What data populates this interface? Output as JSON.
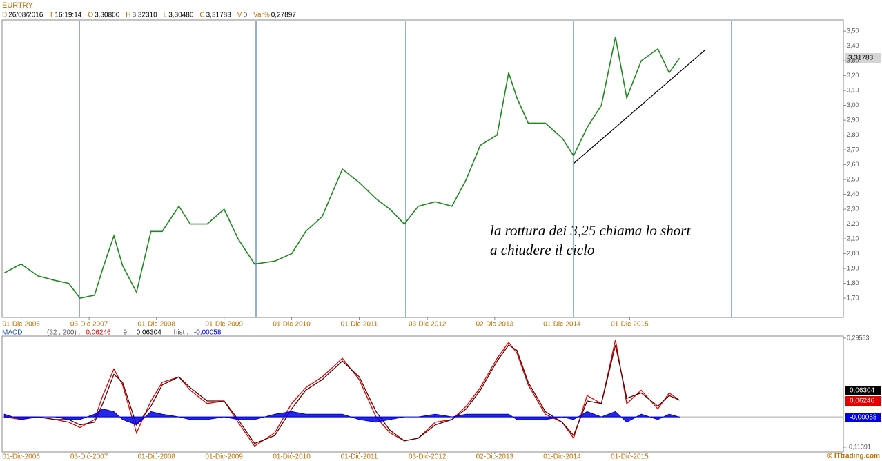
{
  "header": {
    "title": "EURTRY",
    "quote": [
      {
        "key": "D",
        "value": "26/08/2016"
      },
      {
        "key": "T",
        "value": "16:19:14"
      },
      {
        "key": "O",
        "value": "3,30800"
      },
      {
        "key": "H",
        "value": "3,32310"
      },
      {
        "key": "L",
        "value": "3,30480"
      },
      {
        "key": "C",
        "value": "3,31783"
      },
      {
        "key": "V",
        "value": "0"
      },
      {
        "key": "Var%",
        "value": "0,27897"
      }
    ],
    "last_price_label": "3,31783",
    "annotation": [
      "la rottura dei 3,25 chiama lo short",
      "a chiudere il ciclo"
    ],
    "credit": "© ITtrading.com"
  },
  "chart_data": [
    {
      "type": "line",
      "x": [
        "2006-09-01",
        "2006-12-01",
        "2007-03-01",
        "2007-06-01",
        "2007-08-15",
        "2007-10-15",
        "2008-01-01",
        "2008-02-15",
        "2008-04-15",
        "2008-06-01",
        "2008-08-15",
        "2008-11-01",
        "2009-01-01",
        "2009-04-01",
        "2009-06-01",
        "2009-09-01",
        "2009-12-01",
        "2010-02-15",
        "2010-05-15",
        "2010-09-01",
        "2010-12-01",
        "2011-02-15",
        "2011-05-15",
        "2011-09-01",
        "2011-12-01",
        "2012-03-01",
        "2012-05-15",
        "2012-08-01",
        "2012-10-15",
        "2013-01-15",
        "2013-04-15",
        "2013-07-01",
        "2013-09-15",
        "2013-12-15",
        "2014-02-15",
        "2014-04-01",
        "2014-06-01",
        "2014-09-01",
        "2014-12-01",
        "2015-02-01",
        "2015-04-15",
        "2015-07-01",
        "2015-09-15",
        "2015-11-15",
        "2016-02-01",
        "2016-05-01",
        "2016-07-01",
        "2016-08-26"
      ],
      "series": [
        {
          "name": "EURTRY",
          "color": "#1c8a1c",
          "values": [
            1.87,
            1.93,
            1.85,
            1.82,
            1.8,
            1.7,
            1.72,
            1.9,
            2.12,
            1.92,
            1.74,
            2.15,
            2.15,
            2.32,
            2.2,
            2.2,
            2.3,
            2.1,
            1.93,
            1.95,
            2.0,
            2.15,
            2.25,
            2.57,
            2.48,
            2.37,
            2.3,
            2.2,
            2.32,
            2.35,
            2.32,
            2.5,
            2.73,
            2.8,
            3.22,
            3.05,
            2.88,
            2.88,
            2.78,
            2.66,
            2.85,
            3.0,
            3.46,
            3.05,
            3.3,
            3.38,
            3.22,
            3.31783
          ]
        }
      ],
      "xlim": [
        "2006-08-20",
        "2019-01-28"
      ],
      "xticks": [
        {
          "value": "2006-12-01",
          "label": "01-Dic-2006"
        },
        {
          "value": "2007-12-03",
          "label": "03-Dic-2007"
        },
        {
          "value": "2008-12-01",
          "label": "01-Dic-2008"
        },
        {
          "value": "2009-12-01",
          "label": "01-Dic-2009"
        },
        {
          "value": "2010-12-01",
          "label": "01-Dic-2010"
        },
        {
          "value": "2011-12-01",
          "label": "01-Dic-2011"
        },
        {
          "value": "2012-12-03",
          "label": "03-Dic-2012"
        },
        {
          "value": "2013-12-02",
          "label": "02-Dic-2013"
        },
        {
          "value": "2014-12-01",
          "label": "01-Dic-2014"
        },
        {
          "value": "2015-12-01",
          "label": "01-Dic-2015"
        }
      ],
      "ylim": [
        1.57,
        3.575
      ],
      "yticks": [
        {
          "value": 1.7,
          "label": "1,70"
        },
        {
          "value": 1.8,
          "label": "1,80"
        },
        {
          "value": 1.9,
          "label": "1,90"
        },
        {
          "value": 2.0,
          "label": "2,00"
        },
        {
          "value": 2.1,
          "label": "2,10"
        },
        {
          "value": 2.2,
          "label": "2,20"
        },
        {
          "value": 2.3,
          "label": "2,30"
        },
        {
          "value": 2.4,
          "label": "2,40"
        },
        {
          "value": 2.5,
          "label": "2,50"
        },
        {
          "value": 2.6,
          "label": "2,60"
        },
        {
          "value": 2.7,
          "label": "2,70"
        },
        {
          "value": 2.8,
          "label": "2,80"
        },
        {
          "value": 2.9,
          "label": "2,90"
        },
        {
          "value": 3.0,
          "label": "3,00"
        },
        {
          "value": 3.1,
          "label": "3,10"
        },
        {
          "value": 3.2,
          "label": "3,20"
        },
        {
          "value": 3.3,
          "label": "3,30"
        },
        {
          "value": 3.4,
          "label": "3,40"
        },
        {
          "value": 3.5,
          "label": "3,50"
        }
      ]
    },
    {
      "type": "line",
      "title": "MACD",
      "x": [
        "2006-09-01",
        "2006-12-01",
        "2007-03-01",
        "2007-06-01",
        "2007-08-15",
        "2007-10-15",
        "2008-01-01",
        "2008-02-15",
        "2008-04-15",
        "2008-06-01",
        "2008-08-15",
        "2008-11-01",
        "2009-01-01",
        "2009-04-01",
        "2009-06-01",
        "2009-09-01",
        "2009-12-01",
        "2010-02-15",
        "2010-05-15",
        "2010-09-01",
        "2010-12-01",
        "2011-02-15",
        "2011-05-15",
        "2011-09-01",
        "2011-12-01",
        "2012-03-01",
        "2012-05-15",
        "2012-08-01",
        "2012-10-15",
        "2013-01-15",
        "2013-04-15",
        "2013-07-01",
        "2013-09-15",
        "2013-12-15",
        "2014-02-15",
        "2014-04-01",
        "2014-06-01",
        "2014-09-01",
        "2014-12-01",
        "2015-02-01",
        "2015-04-15",
        "2015-07-01",
        "2015-09-15",
        "2015-11-15",
        "2016-02-01",
        "2016-05-01",
        "2016-07-01",
        "2016-08-26"
      ],
      "series": [
        {
          "name": "(32 , 200) :",
          "color": "#e00000",
          "last_label": "0,06246",
          "values": [
            0.0,
            -0.01,
            0.0,
            -0.01,
            -0.02,
            -0.04,
            -0.01,
            0.08,
            0.18,
            0.12,
            -0.06,
            0.06,
            0.13,
            0.15,
            0.1,
            0.05,
            0.06,
            -0.02,
            -0.11,
            -0.06,
            0.05,
            0.11,
            0.15,
            0.22,
            0.14,
            0.0,
            -0.06,
            -0.09,
            -0.08,
            -0.02,
            -0.01,
            0.04,
            0.11,
            0.22,
            0.28,
            0.24,
            0.12,
            0.01,
            -0.02,
            -0.08,
            0.08,
            0.05,
            0.29,
            0.05,
            0.1,
            0.03,
            0.09,
            0.06246
          ]
        },
        {
          "name": "9 :",
          "color": "#5a0000",
          "last_label": "0,06304",
          "values": [
            0.0,
            0.0,
            0.0,
            -0.01,
            -0.01,
            -0.03,
            -0.02,
            0.05,
            0.16,
            0.13,
            -0.03,
            0.04,
            0.12,
            0.15,
            0.11,
            0.06,
            0.06,
            -0.01,
            -0.1,
            -0.07,
            0.03,
            0.1,
            0.14,
            0.21,
            0.15,
            0.02,
            -0.05,
            -0.09,
            -0.08,
            -0.03,
            -0.01,
            0.03,
            0.1,
            0.21,
            0.27,
            0.25,
            0.13,
            0.02,
            -0.02,
            -0.07,
            0.06,
            0.05,
            0.27,
            0.07,
            0.09,
            0.04,
            0.08,
            0.06304
          ]
        },
        {
          "name": "hist :",
          "color": "#0000e0",
          "last_label": "-0,00058",
          "style": "area",
          "values": [
            0.01,
            -0.01,
            0.0,
            0.0,
            -0.01,
            -0.01,
            0.01,
            0.03,
            0.02,
            -0.01,
            -0.03,
            0.02,
            0.01,
            0.0,
            -0.01,
            -0.01,
            0.0,
            -0.01,
            -0.01,
            0.01,
            0.02,
            0.01,
            0.01,
            0.01,
            -0.01,
            -0.02,
            -0.01,
            0.0,
            0.0,
            0.01,
            0.0,
            0.01,
            0.01,
            0.01,
            0.01,
            -0.01,
            -0.01,
            -0.01,
            0.0,
            -0.01,
            0.02,
            0.0,
            0.02,
            -0.02,
            0.01,
            -0.01,
            0.01,
            -0.00058
          ]
        }
      ],
      "xlim": [
        "2006-08-20",
        "2019-01-28"
      ],
      "xticks": [
        {
          "value": "2006-12-01",
          "label": "01-Dic-2006"
        },
        {
          "value": "2007-12-03",
          "label": "03-Dic-2007"
        },
        {
          "value": "2008-12-01",
          "label": "01-Dic-2008"
        },
        {
          "value": "2009-12-01",
          "label": "01-Dic-2009"
        },
        {
          "value": "2010-12-01",
          "label": "01-Dic-2010"
        },
        {
          "value": "2011-12-01",
          "label": "01-Dic-2011"
        },
        {
          "value": "2012-12-03",
          "label": "03-Dic-2012"
        },
        {
          "value": "2013-12-02",
          "label": "02-Dic-2013"
        },
        {
          "value": "2014-12-01",
          "label": "01-Dic-2014"
        },
        {
          "value": "2015-12-01",
          "label": "01-Dic-2015"
        }
      ],
      "ylim": [
        -0.132,
        0.3036
      ],
      "yticks": [
        {
          "value": -0.11391,
          "label": "-0,11391"
        },
        {
          "value": 0.29583,
          "label": "0,29583"
        }
      ]
    }
  ]
}
